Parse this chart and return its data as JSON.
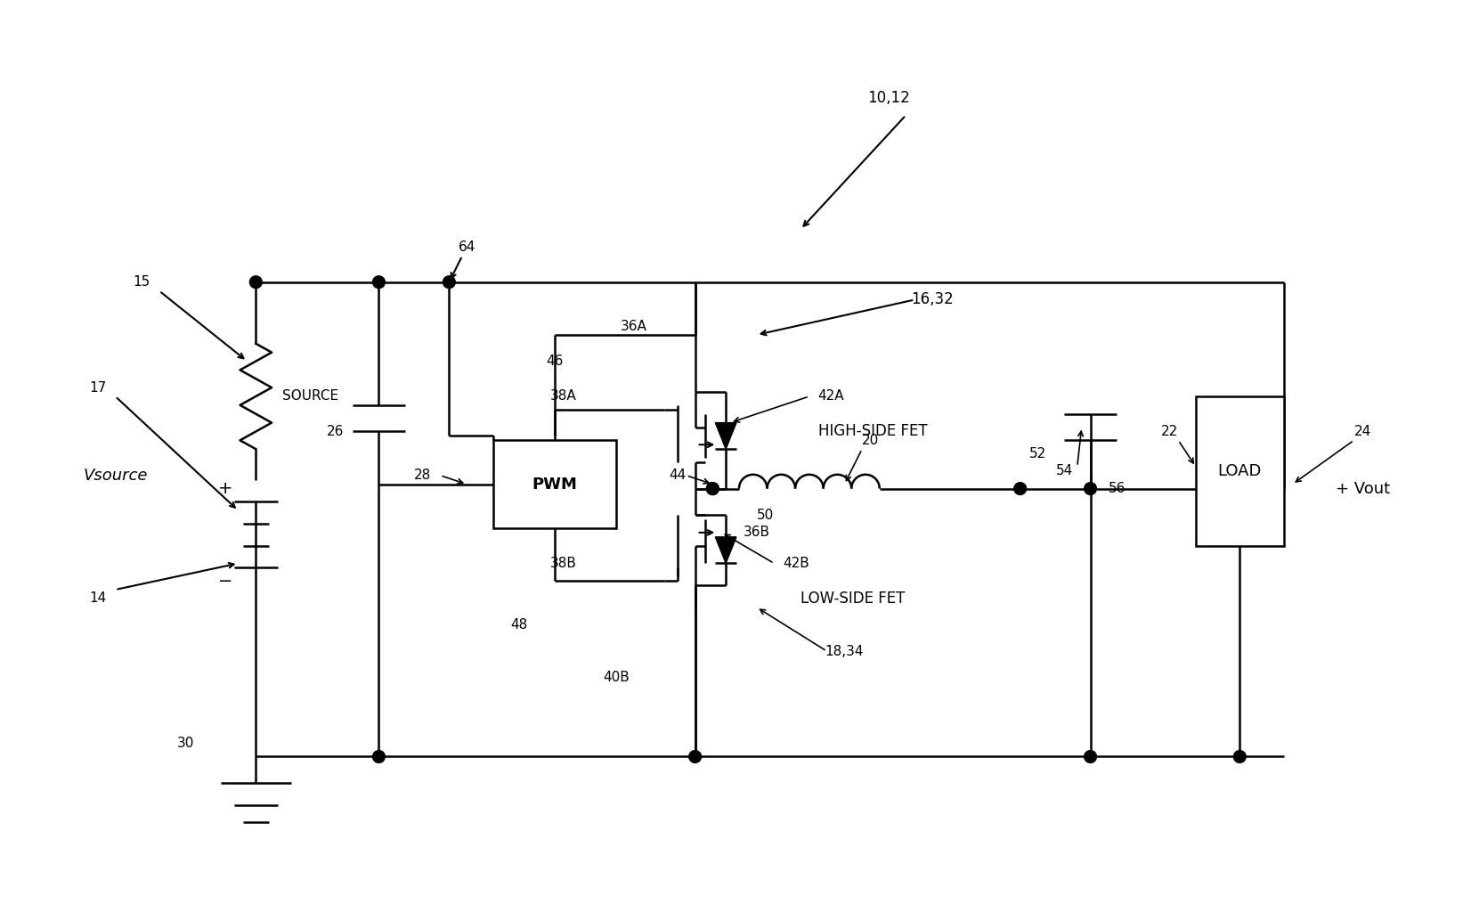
{
  "bg_color": "#ffffff",
  "line_color": "#000000",
  "line_width": 1.8,
  "fig_width": 16.52,
  "fig_height": 10.34,
  "labels": {
    "10_12": "10,12",
    "14": "14",
    "15": "15",
    "16_32": "16,32",
    "17": "17",
    "18_34": "18,34",
    "20": "20",
    "22": "22",
    "24": "24",
    "26": "26",
    "28": "28",
    "30": "30",
    "36A": "36A",
    "36B": "36B",
    "38A": "38A",
    "38B": "38B",
    "40B": "40B",
    "42A": "42A",
    "42B": "42B",
    "44": "44",
    "46": "46",
    "48": "48",
    "50": "50",
    "52": "52",
    "54": "54",
    "56": "56",
    "64": "64",
    "Vsource": "Vsource",
    "Vout": "+ Vout",
    "SOURCE": "SOURCE",
    "PWM": "PWM",
    "HIGH_SIDE_FET": "HIGH-SIDE FET",
    "LOW_SIDE_FET": "LOW-SIDE FET",
    "LOAD": "LOAD"
  }
}
